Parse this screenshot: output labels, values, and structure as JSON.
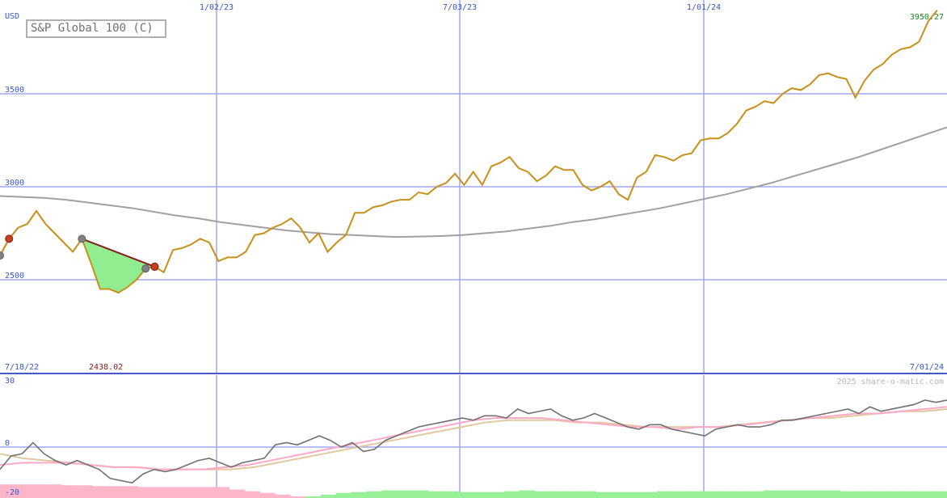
{
  "chart_data": [
    {
      "type": "line",
      "title": "S&P Global 100 (C)",
      "currency": "USD",
      "ylim": [
        2000,
        4000
      ],
      "y_ticks": [
        2500,
        3000,
        3500
      ],
      "x_range": [
        "7/18/22",
        "7/01/24"
      ],
      "x_ticks": [
        "1/02/23",
        "7/03/23",
        "1/01/24"
      ],
      "start_date_label": "7/18/22",
      "end_date_label": "7/01/24",
      "low_label": "2438.02",
      "last_value_label": "3950.27",
      "series": [
        {
          "role": "price",
          "values": [
            2630,
            2720,
            2780,
            2800,
            2870,
            2800,
            2750,
            2700,
            2650,
            2720,
            2590,
            2450,
            2450,
            2430,
            2460,
            2500,
            2560,
            2570,
            2540,
            2660,
            2670,
            2690,
            2720,
            2700,
            2600,
            2620,
            2620,
            2650,
            2740,
            2750,
            2780,
            2800,
            2830,
            2780,
            2700,
            2750,
            2650,
            2700,
            2740,
            2860,
            2860,
            2890,
            2900,
            2920,
            2930,
            2930,
            2970,
            2960,
            3000,
            3020,
            3070,
            3010,
            3080,
            3010,
            3110,
            3130,
            3160,
            3100,
            3080,
            3030,
            3060,
            3110,
            3090,
            3090,
            3010,
            2980,
            3000,
            3030,
            2960,
            2930,
            3050,
            3080,
            3170,
            3160,
            3140,
            3170,
            3180,
            3250,
            3260,
            3260,
            3290,
            3340,
            3410,
            3430,
            3460,
            3450,
            3500,
            3530,
            3520,
            3550,
            3600,
            3610,
            3590,
            3580,
            3480,
            3570,
            3630,
            3660,
            3710,
            3740,
            3750,
            3780,
            3890,
            3950
          ]
        },
        {
          "role": "moving-average",
          "values": [
            2950,
            2945,
            2940,
            2930,
            2915,
            2900,
            2885,
            2865,
            2845,
            2830,
            2810,
            2795,
            2780,
            2765,
            2755,
            2745,
            2740,
            2735,
            2730,
            2732,
            2735,
            2740,
            2750,
            2760,
            2775,
            2790,
            2810,
            2825,
            2845,
            2865,
            2885,
            2910,
            2935,
            2960,
            2990,
            3020,
            3055,
            3090,
            3125,
            3160,
            3200,
            3240,
            3280,
            3320
          ]
        }
      ],
      "shaded_periods": [
        {
          "type": "loss",
          "from_index": 0,
          "to_index": 1
        },
        {
          "type": "gain",
          "from_index": 9,
          "to_index": 17
        },
        {
          "type": "loss",
          "from_index": 16,
          "to_index": 17
        }
      ]
    },
    {
      "type": "line",
      "ylim": [
        -20,
        30
      ],
      "y_ticks": [
        30,
        0,
        -20
      ],
      "watermark": "2025 share-o-matic.com",
      "series": [
        {
          "role": "momentum",
          "values": [
            -10,
            -4,
            -3,
            2,
            -3,
            -6,
            -8,
            -6,
            -8,
            -10,
            -14,
            -15,
            -16,
            -12,
            -10,
            -11,
            -10,
            -8,
            -6,
            -5,
            -7,
            -9,
            -7,
            -6,
            -5,
            1,
            2,
            1,
            3,
            5,
            3,
            0,
            2,
            -2,
            -1,
            3,
            5,
            7,
            9,
            10,
            11,
            12,
            13,
            12,
            14,
            14,
            13,
            17,
            15,
            16,
            17,
            14,
            12,
            13,
            15,
            13,
            11,
            9,
            8,
            10,
            10,
            8,
            7,
            6,
            5,
            8,
            9,
            10,
            9,
            9,
            10,
            12,
            12,
            13,
            14,
            15,
            16,
            17,
            15,
            18,
            16,
            17,
            18,
            19,
            21,
            20,
            21
          ]
        },
        {
          "role": "signal-fast",
          "values": [
            -8,
            -7,
            -7,
            -7,
            -8,
            -9,
            -9,
            -10,
            -10,
            -10,
            -9,
            -8,
            -6,
            -4,
            -2,
            0,
            2,
            4,
            6,
            8,
            10,
            12,
            13,
            13,
            13,
            12,
            11,
            10,
            9,
            9,
            8,
            9,
            9,
            10,
            11,
            12,
            13,
            14,
            15,
            15,
            16,
            17,
            18
          ]
        },
        {
          "role": "signal-slow",
          "values": [
            -3,
            -5,
            -6,
            -7,
            -8,
            -9,
            -9,
            -10,
            -10,
            -10,
            -10,
            -9,
            -7,
            -5,
            -3,
            -1,
            1,
            3,
            5,
            7,
            9,
            11,
            12,
            12,
            12,
            11,
            11,
            10,
            9,
            9,
            9,
            9,
            10,
            11,
            12,
            13,
            13,
            14,
            15,
            16,
            16,
            17
          ]
        }
      ],
      "histogram": [
        -16,
        -16,
        -16,
        -16,
        -15,
        -15,
        -14,
        -14,
        -14,
        -13,
        -13,
        -13,
        -13,
        -13,
        -13,
        -10,
        -8,
        -6,
        -4,
        -2,
        2,
        4,
        6,
        7,
        8,
        9,
        9,
        9,
        8,
        8,
        7,
        7,
        7,
        8,
        9,
        8,
        8,
        8,
        8,
        7,
        7,
        7,
        7,
        8,
        8,
        8,
        8,
        8,
        8,
        8,
        9,
        9,
        9,
        9,
        9,
        8,
        8,
        8,
        8,
        8,
        8,
        8
      ]
    }
  ]
}
